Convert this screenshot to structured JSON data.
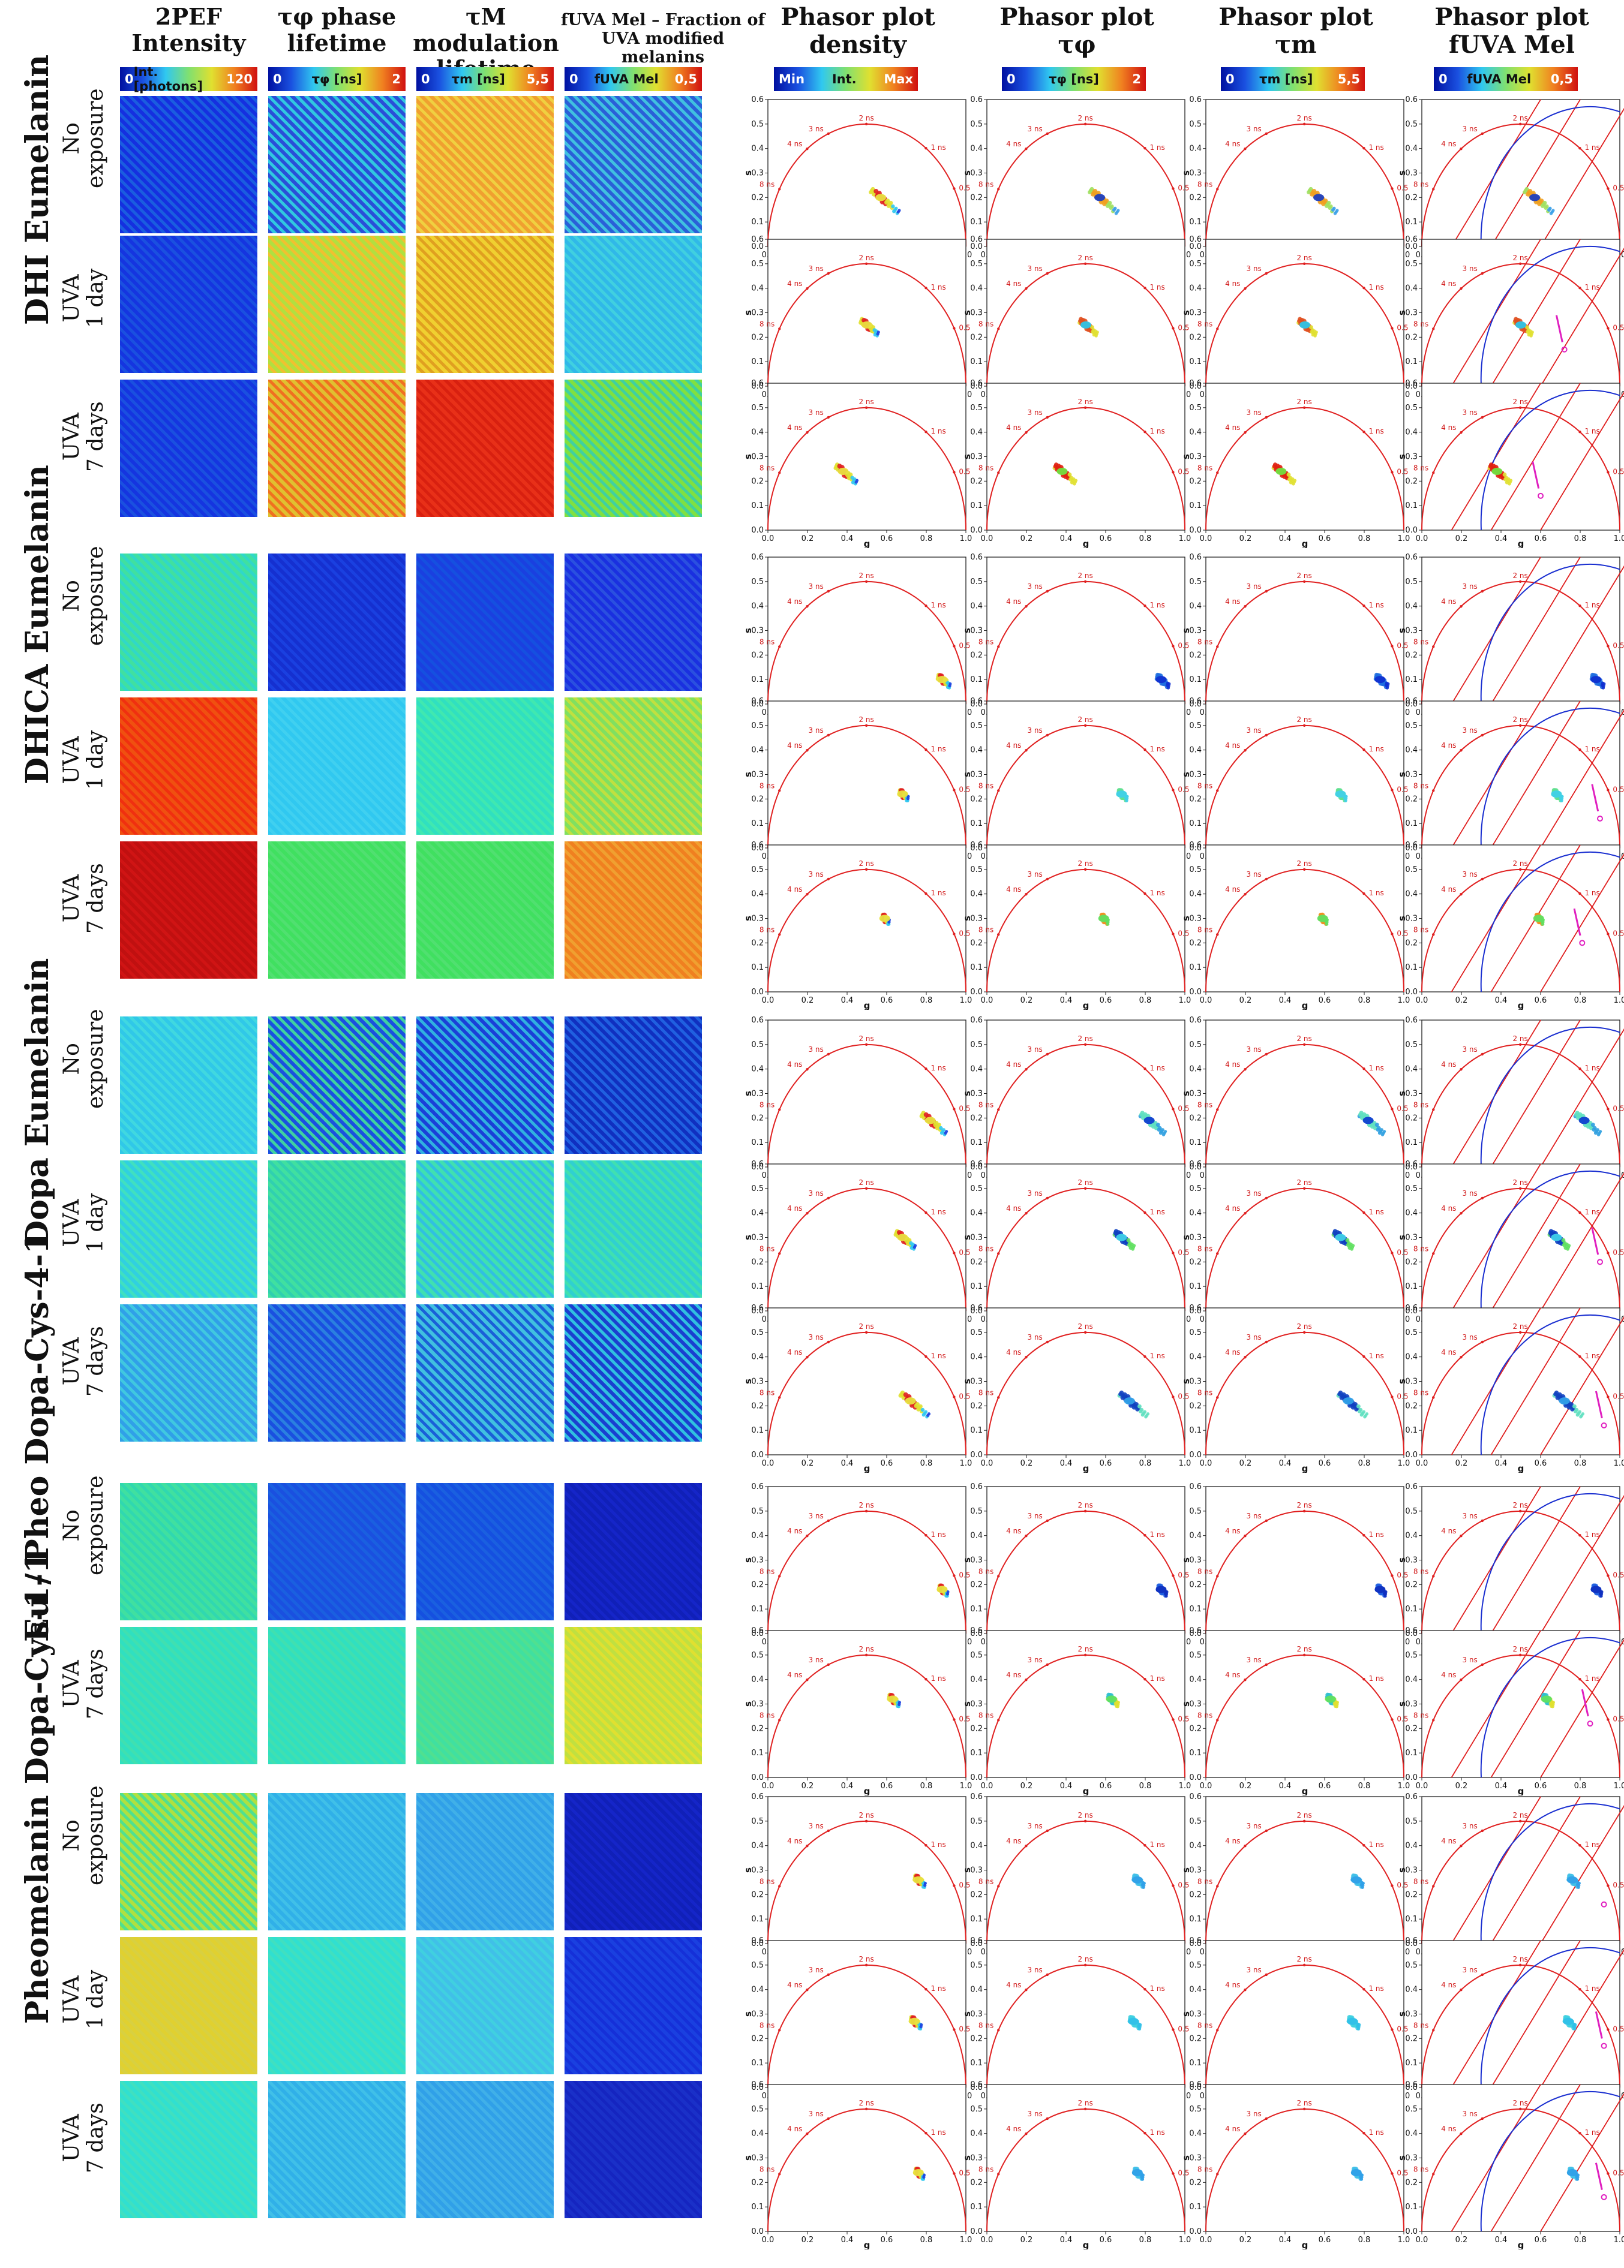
{
  "columns": {
    "intensity": {
      "line1": "2PEF",
      "line2": "Intensity"
    },
    "phase": {
      "line1": "τφ phase",
      "line2": "lifetime"
    },
    "modulation": {
      "line1": "τM modulation",
      "line2": "lifetime"
    },
    "fraction": {
      "line1": "fUVA Mel – Fraction of",
      "line2": "UVA modified melanins"
    },
    "density": {
      "line1": "Phasor plot",
      "line2": "density"
    },
    "phasor_phase": {
      "line1": "Phasor plot",
      "line2": "τφ"
    },
    "phasor_mod": {
      "line1": "Phasor plot",
      "line2": "τm"
    },
    "phasor_fraction": {
      "line1": "Phasor plot",
      "line2": "fUVA Mel"
    }
  },
  "colorbars": {
    "intensity": {
      "min": "0",
      "label": "Int. [photons]",
      "max": "120"
    },
    "phase": {
      "min": "0",
      "label": "τφ [ns]",
      "max": "2"
    },
    "modulation": {
      "min": "0",
      "label": "τm [ns]",
      "max": "5,5"
    },
    "fraction": {
      "min": "0",
      "label": "fUVA Mel",
      "max": "0,5"
    },
    "density": {
      "min": "Min",
      "label": "Int.",
      "max": "Max"
    },
    "phasor_phase": {
      "min": "0",
      "label": "τφ [ns]",
      "max": "2"
    },
    "phasor_mod": {
      "min": "0",
      "label": "τm [ns]",
      "max": "5,5"
    },
    "phasor_fraction": {
      "min": "0",
      "label": "fUVA Mel",
      "max": "0,5"
    }
  },
  "phasor_axes": {
    "xlabel": "g",
    "ylabel": "s",
    "xticks": [
      "0.0",
      "0.2",
      "0.4",
      "0.6",
      "0.8",
      "1.0"
    ],
    "yticks": [
      "0.0",
      "0.1",
      "0.2",
      "0.3",
      "0.4",
      "0.5",
      "0.6"
    ],
    "lifetime_marks": [
      {
        "label": "8 ns",
        "tau_ns": 8
      },
      {
        "label": "4 ns",
        "tau_ns": 4
      },
      {
        "label": "3 ns",
        "tau_ns": 3
      },
      {
        "label": "2 ns",
        "tau_ns": 2
      },
      {
        "label": "1 ns",
        "tau_ns": 1
      },
      {
        "label": "0.5 ns",
        "tau_ns": 0.5
      }
    ]
  },
  "sections": [
    {
      "name": "DHI Eumelanin",
      "rows": [
        {
          "line1": "No",
          "line2": "exposure",
          "g": 0.57,
          "s": 0.2,
          "spread": 0.8,
          "colors": [
            "#1f3fbf",
            "#3aa0e8",
            "#a0e060",
            "#f0a020"
          ]
        },
        {
          "line1": "UVA",
          "line2": "1 day",
          "g": 0.5,
          "s": 0.25,
          "spread": 0.5,
          "colors": [
            "#2ec4e8",
            "#e0e030",
            "#e05020"
          ]
        },
        {
          "line1": "UVA",
          "line2": "7 days",
          "g": 0.38,
          "s": 0.24,
          "spread": 0.6,
          "colors": [
            "#70e040",
            "#e0e030",
            "#e02010"
          ]
        }
      ]
    },
    {
      "name": "DHICA Eumelanin",
      "rows": [
        {
          "line1": "No",
          "line2": "exposure",
          "g": 0.88,
          "s": 0.1,
          "spread": 0.35,
          "colors": [
            "#1030d0",
            "#1f6fe0"
          ]
        },
        {
          "line1": "UVA",
          "line2": "1 day",
          "g": 0.68,
          "s": 0.22,
          "spread": 0.25,
          "colors": [
            "#40d0e8",
            "#60e090"
          ]
        },
        {
          "line1": "UVA",
          "line2": "7 days",
          "g": 0.59,
          "s": 0.3,
          "spread": 0.2,
          "colors": [
            "#60e060",
            "#f09020"
          ]
        }
      ]
    },
    {
      "name": "Dopa Eumelanin",
      "rows": [
        {
          "line1": "No",
          "line2": "exposure",
          "g": 0.82,
          "s": 0.19,
          "spread": 0.7,
          "colors": [
            "#1040d0",
            "#30a0e0",
            "#60e0c0"
          ]
        },
        {
          "line1": "UVA",
          "line2": "1 day",
          "g": 0.68,
          "s": 0.3,
          "spread": 0.55,
          "colors": [
            "#40d0e8",
            "#60e060",
            "#1040c0"
          ]
        },
        {
          "line1": "UVA",
          "line2": "7 days",
          "g": 0.72,
          "s": 0.22,
          "spread": 0.8,
          "colors": [
            "#30a0e8",
            "#60e0c0",
            "#1040c0"
          ]
        }
      ]
    },
    {
      "name": "Eu / Pheo Dopa-Cys-4-1",
      "rows": [
        {
          "line1": "No",
          "line2": "exposure",
          "g": 0.88,
          "s": 0.18,
          "spread": 0.25,
          "colors": [
            "#1030c0",
            "#2060e0"
          ]
        },
        {
          "line1": "UVA",
          "line2": "7 days",
          "g": 0.63,
          "s": 0.32,
          "spread": 0.3,
          "colors": [
            "#60e060",
            "#e0e030",
            "#30c0d0"
          ]
        }
      ]
    },
    {
      "name": "Pheomelanin Dopa-Cys-1-1",
      "rows": [
        {
          "line1": "No",
          "line2": "exposure",
          "g": 0.76,
          "s": 0.26,
          "spread": 0.3,
          "colors": [
            "#30a0e8",
            "#40c0e8"
          ]
        },
        {
          "line1": "UVA",
          "line2": "1 day",
          "g": 0.74,
          "s": 0.27,
          "spread": 0.3,
          "colors": [
            "#30c0e8",
            "#40d0e0"
          ]
        },
        {
          "line1": "UVA",
          "line2": "7 days",
          "g": 0.76,
          "s": 0.24,
          "spread": 0.25,
          "colors": [
            "#30a0e8",
            "#40c0e8"
          ]
        }
      ]
    }
  ],
  "tile_colors": [
    [
      [
        "#1530e0",
        "#1a5de0"
      ],
      [
        "#2a4fd8",
        "#30c8e0"
      ],
      [
        "#f0a030",
        "#f0d040"
      ],
      [
        "#2a60d8",
        "#40c0e0"
      ]
    ],
    [
      [
        "#1535e0",
        "#1a50e0"
      ],
      [
        "#b0e040",
        "#f0c030"
      ],
      [
        "#f0d030",
        "#e0a020"
      ],
      [
        "#30b8e8",
        "#40d0e0"
      ]
    ],
    [
      [
        "#1535e0",
        "#1a50e0"
      ],
      [
        "#e0c030",
        "#f07020"
      ],
      [
        "#e83018",
        "#d82010"
      ],
      [
        "#80e040",
        "#40d0a0"
      ]
    ],
    [
      [
        "#40e0a0",
        "#30d8c8"
      ],
      [
        "#1530d0",
        "#1a40e0"
      ],
      [
        "#1a40e0",
        "#1550e0"
      ],
      [
        "#1a30e0",
        "#2a50e0"
      ]
    ],
    [
      [
        "#f05010",
        "#f03010"
      ],
      [
        "#30c8f0",
        "#40d0f0"
      ],
      [
        "#30e0c0",
        "#40e8b0"
      ],
      [
        "#80e060",
        "#c0e040"
      ]
    ],
    [
      [
        "#c01010",
        "#d01414"
      ],
      [
        "#40e060",
        "#50e070"
      ],
      [
        "#40e060",
        "#50e070"
      ],
      [
        "#f08020",
        "#f0a030"
      ]
    ],
    [
      [
        "#30c8e8",
        "#40d8e0"
      ],
      [
        "#1a50e0",
        "#40d0a0"
      ],
      [
        "#1a40d8",
        "#30b0e0"
      ],
      [
        "#1030c0",
        "#2060e0"
      ]
    ],
    [
      [
        "#30d0e0",
        "#40e0c0"
      ],
      [
        "#40e0a0",
        "#30d0b0"
      ],
      [
        "#40e0b0",
        "#30c0e0"
      ],
      [
        "#30d0d0",
        "#40e0b0"
      ]
    ],
    [
      [
        "#30a0e8",
        "#40c8e0"
      ],
      [
        "#1a50e0",
        "#2a80e0"
      ],
      [
        "#40c0e0",
        "#1a60d8"
      ],
      [
        "#1a40d0",
        "#30c0e0"
      ]
    ],
    [
      [
        "#40e0a0",
        "#30d8b0"
      ],
      [
        "#1a50e0",
        "#1a60e0"
      ],
      [
        "#1550e0",
        "#1a60e0"
      ],
      [
        "#1020b8",
        "#1525c8"
      ]
    ],
    [
      [
        "#30e0c0",
        "#40e0b0"
      ],
      [
        "#30e0c0",
        "#40e0b0"
      ],
      [
        "#40e0a0",
        "#50e090"
      ],
      [
        "#c0e040",
        "#e0e030"
      ]
    ],
    [
      [
        "#b0e040",
        "#50e090"
      ],
      [
        "#30b0e8",
        "#40c0e8"
      ],
      [
        "#30a0e8",
        "#40b0e8"
      ],
      [
        "#1020b8",
        "#1525c8"
      ]
    ],
    [
      [
        "#e0d030",
        "#d8d040"
      ],
      [
        "#30e0d0",
        "#40e0c0"
      ],
      [
        "#40c0e8",
        "#40d0e0"
      ],
      [
        "#1a40e0",
        "#1530d8"
      ]
    ],
    [
      [
        "#30e0d0",
        "#40e0c0"
      ],
      [
        "#30b0e8",
        "#40c0e8"
      ],
      [
        "#30a0e8",
        "#40b0e8"
      ],
      [
        "#1a30c8",
        "#1525c0"
      ]
    ]
  ]
}
